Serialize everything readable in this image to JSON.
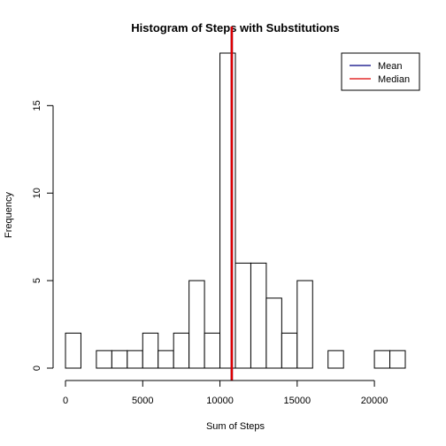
{
  "chart_data": {
    "type": "bar",
    "title": "Histogram of Steps with Substitutions",
    "xlabel": "Sum of Steps",
    "ylabel": "Frequency",
    "bin_width": 1000,
    "bins": [
      {
        "x0": 0,
        "x1": 1000,
        "count": 2
      },
      {
        "x0": 1000,
        "x1": 2000,
        "count": 0
      },
      {
        "x0": 2000,
        "x1": 3000,
        "count": 1
      },
      {
        "x0": 3000,
        "x1": 4000,
        "count": 1
      },
      {
        "x0": 4000,
        "x1": 5000,
        "count": 1
      },
      {
        "x0": 5000,
        "x1": 6000,
        "count": 2
      },
      {
        "x0": 6000,
        "x1": 7000,
        "count": 1
      },
      {
        "x0": 7000,
        "x1": 8000,
        "count": 2
      },
      {
        "x0": 8000,
        "x1": 9000,
        "count": 5
      },
      {
        "x0": 9000,
        "x1": 10000,
        "count": 2
      },
      {
        "x0": 10000,
        "x1": 11000,
        "count": 18
      },
      {
        "x0": 11000,
        "x1": 12000,
        "count": 6
      },
      {
        "x0": 12000,
        "x1": 13000,
        "count": 6
      },
      {
        "x0": 13000,
        "x1": 14000,
        "count": 4
      },
      {
        "x0": 14000,
        "x1": 15000,
        "count": 2
      },
      {
        "x0": 15000,
        "x1": 16000,
        "count": 5
      },
      {
        "x0": 16000,
        "x1": 17000,
        "count": 0
      },
      {
        "x0": 17000,
        "x1": 18000,
        "count": 1
      },
      {
        "x0": 18000,
        "x1": 19000,
        "count": 0
      },
      {
        "x0": 19000,
        "x1": 20000,
        "count": 0
      },
      {
        "x0": 20000,
        "x1": 21000,
        "count": 1
      },
      {
        "x0": 21000,
        "x1": 22000,
        "count": 1
      }
    ],
    "xlim": [
      0,
      22000
    ],
    "ylim": [
      0,
      18
    ],
    "x_ticks": [
      0,
      5000,
      10000,
      15000,
      20000
    ],
    "y_ticks": [
      0,
      5,
      10,
      15
    ],
    "mean": 10766,
    "median": 10766,
    "lines": [
      {
        "name": "Mean",
        "value": 10766,
        "color": "#000080"
      },
      {
        "name": "Median",
        "value": 10766,
        "color": "#dd0000"
      }
    ],
    "legend": {
      "position": "top-right",
      "entries": [
        "Mean",
        "Median"
      ]
    },
    "grid": false,
    "bar_fill": "#ffffff",
    "bar_stroke": "#000000"
  }
}
